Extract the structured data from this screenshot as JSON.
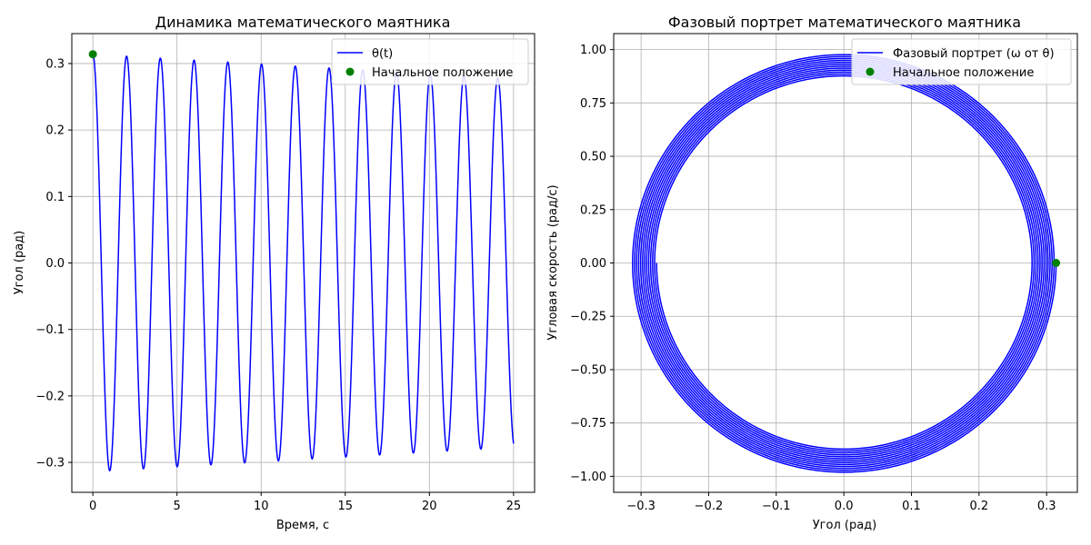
{
  "chart_data": [
    {
      "type": "line",
      "title": "Динамика математического маятника",
      "xlabel": "Время, с",
      "ylabel": "Угол (рад)",
      "xlim": [
        -1.25,
        26.25
      ],
      "ylim": [
        -0.345,
        0.345
      ],
      "xticks": [
        0,
        5,
        10,
        15,
        20,
        25
      ],
      "xtick_labels": [
        "0",
        "5",
        "10",
        "15",
        "20",
        "25"
      ],
      "yticks": [
        -0.3,
        -0.2,
        -0.1,
        0.0,
        0.1,
        0.2,
        0.3
      ],
      "ytick_labels": [
        "−0.3",
        "−0.2",
        "−0.1",
        "0.0",
        "0.1",
        "0.2",
        "0.3"
      ],
      "grid": true,
      "legend_position": "top-right",
      "series": [
        {
          "name": "θ(t)",
          "color": "#0000ff",
          "model": {
            "amplitude_start": 0.314,
            "amplitude_end": 0.277,
            "period": 2.005,
            "t_start": 0,
            "t_end": 25
          }
        },
        {
          "name": "Начальное положение",
          "color": "#008000",
          "marker": "circle",
          "points": [
            [
              0,
              0.314
            ]
          ]
        }
      ]
    },
    {
      "type": "line",
      "title": "Фазовый портрет математического маятника",
      "xlabel": "Угол (рад)",
      "ylabel": "Угловая скорость (рад/с)",
      "xlim": [
        -0.3405,
        0.3455
      ],
      "ylim": [
        -1.075,
        1.075
      ],
      "xticks": [
        -0.3,
        -0.2,
        -0.1,
        0.0,
        0.1,
        0.2,
        0.3
      ],
      "xtick_labels": [
        "−0.3",
        "−0.2",
        "−0.1",
        "0.0",
        "0.1",
        "0.2",
        "0.3"
      ],
      "yticks": [
        -1.0,
        -0.75,
        -0.5,
        -0.25,
        0.0,
        0.25,
        0.5,
        0.75,
        1.0
      ],
      "ytick_labels": [
        "−1.00",
        "−0.75",
        "−0.50",
        "−0.25",
        "0.00",
        "0.25",
        "0.50",
        "0.75",
        "1.00"
      ],
      "grid": true,
      "legend_position": "top-right",
      "series": [
        {
          "name": "Фазовый портрет (ω от θ)",
          "color": "#0000ff",
          "model": {
            "theta_max_start": 0.314,
            "theta_max_end": 0.277,
            "omega_max_start": 0.983,
            "omega_max_end": 0.87
          }
        },
        {
          "name": "Начальное положение",
          "color": "#008000",
          "marker": "circle",
          "points": [
            [
              0.314,
              0.0
            ]
          ]
        }
      ]
    }
  ]
}
